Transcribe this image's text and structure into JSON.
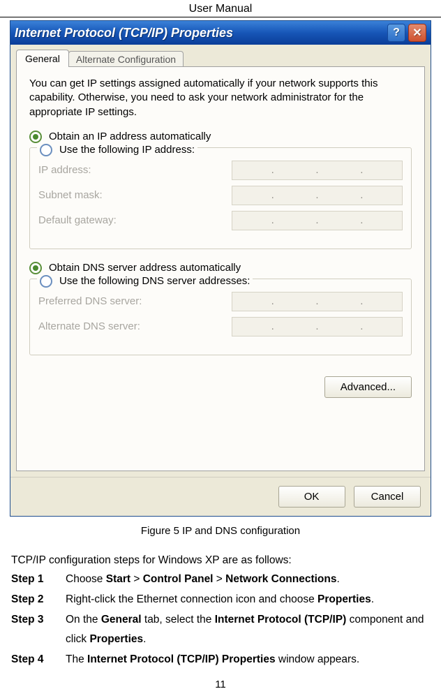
{
  "header": {
    "title": "User Manual"
  },
  "dialog": {
    "title": "Internet Protocol (TCP/IP) Properties",
    "tabs": {
      "general": "General",
      "alt": "Alternate Configuration"
    },
    "description": "You can get IP settings assigned automatically if your network supports this capability. Otherwise, you need to ask your network administrator for the appropriate IP settings.",
    "radio_ip_auto": "Obtain an IP address automatically",
    "radio_ip_manual": "Use the following IP address:",
    "fields_ip": {
      "ip": "IP address:",
      "subnet": "Subnet mask:",
      "gateway": "Default gateway:"
    },
    "radio_dns_auto": "Obtain DNS server address automatically",
    "radio_dns_manual": "Use the following DNS server addresses:",
    "fields_dns": {
      "preferred": "Preferred DNS server:",
      "alternate": "Alternate DNS server:"
    },
    "advanced": "Advanced...",
    "ok": "OK",
    "cancel": "Cancel"
  },
  "figure_caption": "Figure 5 IP and DNS configuration",
  "instructions": {
    "intro": "TCP/IP configuration steps for Windows XP are as follows:",
    "steps": [
      {
        "label": "Step 1",
        "prefix": "Choose ",
        "b1": "Start",
        "mid1": " > ",
        "b2": "Control Panel",
        "mid2": " > ",
        "b3": "Network Connections",
        "suffix": "."
      },
      {
        "label": "Step 2",
        "prefix": "Right-click the Ethernet connection icon and choose ",
        "b1": "Properties",
        "suffix": "."
      },
      {
        "label": "Step 3",
        "prefix": "On the ",
        "b1": "General",
        "mid1": " tab, select the ",
        "b2": "Internet Protocol (TCP/IP)",
        "mid2": " component and click ",
        "b3": "Properties",
        "suffix": "."
      },
      {
        "label": "Step 4",
        "prefix": "The ",
        "b1": "Internet Protocol (TCP/IP) Properties",
        "suffix": " window appears."
      }
    ]
  },
  "page_number": "11"
}
